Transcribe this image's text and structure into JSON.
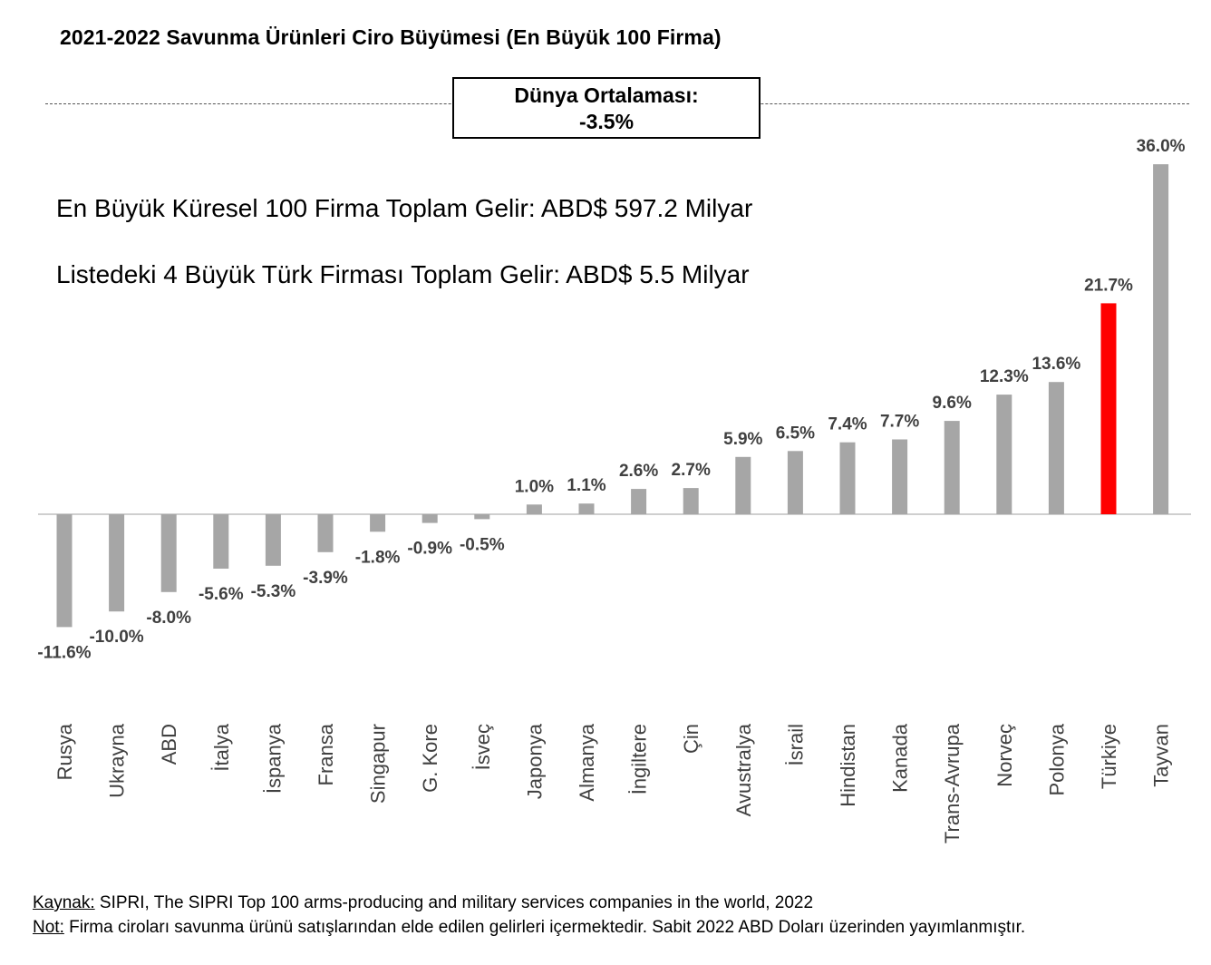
{
  "header": {
    "title": "2021-2022 Savunma Ürünleri Ciro Büyümesi (En Büyük 100 Firma)"
  },
  "average_box": {
    "label": "Dünya Ortalaması:",
    "value": "-3.5%"
  },
  "info": {
    "line1": "En Büyük Küresel 100 Firma Toplam Gelir: ABD$ 597.2 Milyar",
    "line2": "Listedeki 4 Büyük Türk Firması Toplam Gelir: ABD$ 5.5 Milyar"
  },
  "colors": {
    "bar": "#a6a6a6",
    "highlight": "#ff0000",
    "label_text": "#404040",
    "axis": "#bfbfbf"
  },
  "chart_data": {
    "type": "bar",
    "title": "2021-2022 Savunma Ürünleri Ciro Büyümesi (En Büyük 100 Firma)",
    "xlabel": "",
    "ylabel": "",
    "unit": "%",
    "ylim": [
      -16,
      36
    ],
    "grid": false,
    "highlight_category": "Türkiye",
    "categories": [
      "Rusya",
      "Ukrayna",
      "ABD",
      "İtalya",
      "İspanya",
      "Fransa",
      "Singapur",
      "G. Kore",
      "İsveç",
      "Japonya",
      "Almanya",
      "İngiltere",
      "Çin",
      "Avustralya",
      "İsrail",
      "Hindistan",
      "Kanada",
      "Trans-Avrupa",
      "Norveç",
      "Polonya",
      "Türkiye",
      "Tayvan"
    ],
    "values": [
      -11.6,
      -10.0,
      -8.0,
      -5.6,
      -5.3,
      -3.9,
      -1.8,
      -0.9,
      -0.5,
      1.0,
      1.1,
      2.6,
      2.7,
      5.9,
      6.5,
      7.4,
      7.7,
      9.6,
      12.3,
      13.6,
      21.7,
      36.0
    ],
    "data_labels": [
      "-11.6%",
      "-10.0%",
      "-8.0%",
      "-5.6%",
      "-5.3%",
      "-3.9%",
      "-1.8%",
      "-0.9%",
      "-0.5%",
      "1.0%",
      "1.1%",
      "2.6%",
      "2.7%",
      "5.9%",
      "6.5%",
      "7.4%",
      "7.7%",
      "9.6%",
      "12.3%",
      "13.6%",
      "21.7%",
      "36.0%"
    ],
    "reference_line": {
      "label": "Dünya Ortalaması",
      "value": -3.5
    }
  },
  "footer": {
    "source_label": "Kaynak:",
    "source_text": " SIPRI, The SIPRI Top 100 arms-producing and military services companies in the world, 2022",
    "note_label": "Not:",
    "note_text": " Firma ciroları savunma ürünü satışlarından elde edilen gelirleri içermektedir. Sabit 2022 ABD Doları üzerinden yayımlanmıştır."
  }
}
